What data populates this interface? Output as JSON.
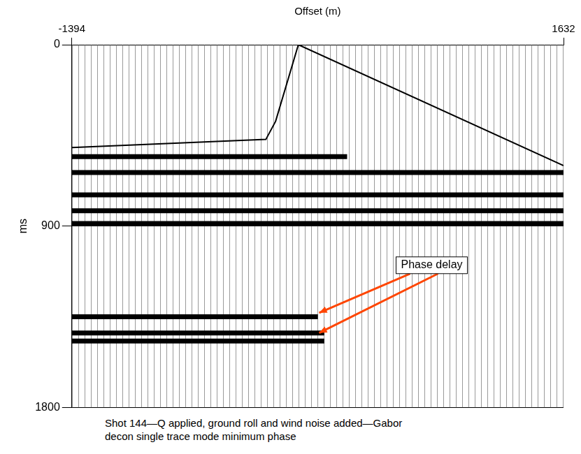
{
  "chart_data": {
    "type": "wiggle",
    "x_label": "Offset (m)",
    "y_label": "ms",
    "xlim": [
      -1394,
      1632
    ],
    "xticks": [
      -1394,
      1632
    ],
    "ylim": [
      0,
      1800
    ],
    "yticks": [
      0,
      900,
      1800
    ],
    "grid": true,
    "color": "#000000",
    "caption": [
      "Shot 144—Q applied, ground roll and wind noise added—Gabor",
      "decon single trace mode minimum phase"
    ],
    "first_break": {
      "x": [
        -1394,
        -200,
        -140,
        0,
        1632
      ],
      "values": [
        510,
        470,
        380,
        0,
        600
      ]
    },
    "reflectors": [
      {
        "time": 555,
        "x": [
          -1394,
          300
        ]
      },
      {
        "time": 634,
        "x": [
          -1394,
          1632
        ]
      },
      {
        "time": 745,
        "x": [
          -1394,
          1632
        ]
      },
      {
        "time": 824,
        "x": [
          -1394,
          1632
        ]
      },
      {
        "time": 887,
        "x": [
          -1394,
          1632
        ]
      },
      {
        "time": 1350,
        "x": [
          -1394,
          120
        ]
      },
      {
        "time": 1430,
        "x": [
          -1394,
          160
        ]
      },
      {
        "time": 1470,
        "x": [
          -1394,
          160
        ]
      }
    ],
    "annotation": {
      "text": "Phase delay",
      "color": "#ff4500",
      "targets": [
        {
          "x": 128,
          "y": 1330
        },
        {
          "x": 128,
          "y": 1430
        }
      ]
    }
  }
}
